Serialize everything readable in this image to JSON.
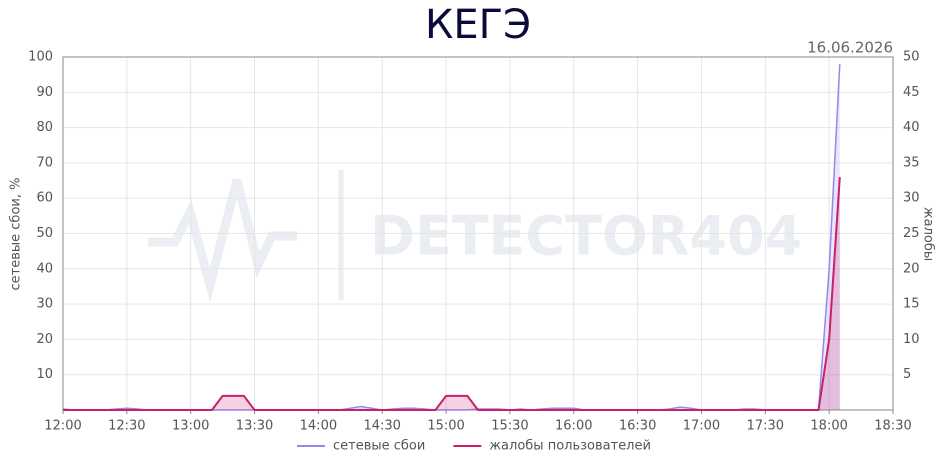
{
  "chart_data": {
    "type": "line",
    "title": "КЕГЭ",
    "date": "16.06.2026",
    "watermark": "DETECTOR404",
    "y_label": "сетевые сбои, %",
    "y2_label": "жалобы",
    "x": [
      "12:00",
      "12:05",
      "12:10",
      "12:15",
      "12:20",
      "12:25",
      "12:30",
      "12:35",
      "12:40",
      "12:45",
      "12:50",
      "12:55",
      "13:00",
      "13:05",
      "13:10",
      "13:15",
      "13:20",
      "13:25",
      "13:30",
      "13:35",
      "13:40",
      "13:45",
      "13:50",
      "13:55",
      "14:00",
      "14:05",
      "14:10",
      "14:15",
      "14:20",
      "14:25",
      "14:30",
      "14:35",
      "14:40",
      "14:45",
      "14:50",
      "14:55",
      "15:00",
      "15:05",
      "15:10",
      "15:15",
      "15:20",
      "15:25",
      "15:30",
      "15:35",
      "15:40",
      "15:45",
      "15:50",
      "15:55",
      "16:00",
      "16:05",
      "16:10",
      "16:15",
      "16:20",
      "16:25",
      "16:30",
      "16:35",
      "16:40",
      "16:45",
      "16:50",
      "16:55",
      "17:00",
      "17:05",
      "17:10",
      "17:15",
      "17:20",
      "17:25",
      "17:30",
      "17:35",
      "17:40",
      "17:45",
      "17:50",
      "17:55",
      "18:00",
      "18:05"
    ],
    "xlim": [
      "12:00",
      "18:30"
    ],
    "xticks": [
      "12:00",
      "12:30",
      "13:00",
      "13:30",
      "14:00",
      "14:30",
      "15:00",
      "15:30",
      "16:00",
      "16:30",
      "17:00",
      "17:30",
      "18:00",
      "18:30"
    ],
    "ylim": [
      0,
      100
    ],
    "yticks": [
      10,
      20,
      30,
      40,
      50,
      60,
      70,
      80,
      90,
      100
    ],
    "y2lim": [
      0,
      50
    ],
    "y2ticks": [
      5,
      10,
      15,
      20,
      25,
      30,
      35,
      40,
      45,
      50
    ],
    "grid": true,
    "series": [
      {
        "name": "сетевые сбои",
        "color": "#9488ec",
        "values": [
          0.3,
          0,
          0,
          0,
          0,
          0.3,
          0.5,
          0.3,
          0,
          0,
          0,
          0,
          0,
          0,
          0,
          0,
          0,
          0,
          0,
          0,
          0,
          0,
          0,
          0,
          0,
          0,
          0,
          0.5,
          1,
          0.5,
          0,
          0.3,
          0.5,
          0.5,
          0.3,
          0,
          0,
          0,
          0,
          0.3,
          0.3,
          0.3,
          0,
          0.3,
          0,
          0.3,
          0.5,
          0.5,
          0.5,
          0,
          0,
          0,
          0,
          0,
          0,
          0,
          0,
          0.3,
          0.8,
          0.5,
          0,
          0,
          0,
          0,
          0.3,
          0.3,
          0,
          0,
          0,
          0,
          0,
          0,
          40,
          98
        ]
      },
      {
        "name": "жалобы пользователей",
        "color": "#c8206a",
        "axis": "y2",
        "values": [
          0,
          0,
          0,
          0,
          0,
          0,
          0,
          0,
          0,
          0,
          0,
          0,
          0,
          0,
          0,
          2,
          2,
          2,
          0,
          0,
          0,
          0,
          0,
          0,
          0,
          0,
          0,
          0,
          0,
          0,
          0,
          0,
          0,
          0,
          0,
          0,
          2,
          2,
          2,
          0,
          0,
          0,
          0,
          0,
          0,
          0,
          0,
          0,
          0,
          0,
          0,
          0,
          0,
          0,
          0,
          0,
          0,
          0,
          0,
          0,
          0,
          0,
          0,
          0,
          0,
          0,
          0,
          0,
          0,
          0,
          0,
          0,
          10,
          33
        ]
      }
    ]
  }
}
